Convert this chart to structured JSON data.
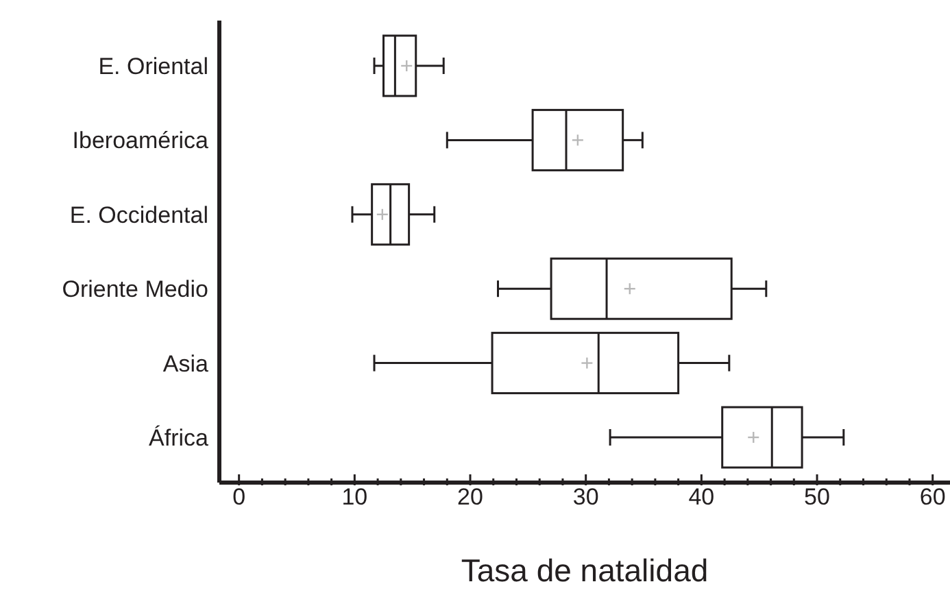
{
  "chart_data": {
    "type": "box",
    "orientation": "horizontal",
    "xlabel": "Tasa de natalidad",
    "color": "#231f20",
    "categories": [
      "E. Oriental",
      "Iberoamérica",
      "E. Occidental",
      "Oriente Medio",
      "Asia",
      "África"
    ],
    "boxes": [
      {
        "low": 11.7,
        "q1": 12.5,
        "median": 13.5,
        "q3": 15.3,
        "high": 17.7,
        "mean": 14.5
      },
      {
        "low": 18.0,
        "q1": 25.4,
        "median": 28.3,
        "q3": 33.2,
        "high": 34.9,
        "mean": 29.3
      },
      {
        "low": 9.8,
        "q1": 11.5,
        "median": 13.1,
        "q3": 14.7,
        "high": 16.9,
        "mean": 12.4
      },
      {
        "low": 22.4,
        "q1": 27.0,
        "median": 31.8,
        "q3": 42.6,
        "high": 45.6,
        "mean": 33.8
      },
      {
        "low": 11.7,
        "q1": 21.9,
        "median": 31.1,
        "q3": 38.0,
        "high": 42.4,
        "mean": 30.1
      },
      {
        "low": 32.1,
        "q1": 41.8,
        "median": 46.1,
        "q3": 48.7,
        "high": 52.3,
        "mean": 44.5
      }
    ],
    "xlim": [
      -1.7,
      61.5
    ],
    "xticks": [
      0,
      {
        "value": 2,
        "label": null
      },
      {
        "value": 4,
        "label": null
      },
      {
        "value": 6,
        "label": null
      },
      {
        "value": 8,
        "label": null
      },
      10,
      {
        "value": 12,
        "label": null
      },
      {
        "value": 14,
        "label": null
      },
      {
        "value": 16,
        "label": null
      },
      {
        "value": 18,
        "label": null
      },
      20,
      {
        "value": 22,
        "label": null
      },
      {
        "value": 24,
        "label": null
      },
      {
        "value": 26,
        "label": null
      },
      {
        "value": 28,
        "label": null
      },
      30,
      {
        "value": 32,
        "label": null
      },
      {
        "value": 34,
        "label": null
      },
      {
        "value": 36,
        "label": null
      },
      {
        "value": 38,
        "label": null
      },
      40,
      {
        "value": 42,
        "label": null
      },
      {
        "value": 44,
        "label": null
      },
      {
        "value": 46,
        "label": null
      },
      {
        "value": 48,
        "label": null
      },
      50,
      {
        "value": 52,
        "label": null
      },
      {
        "value": 54,
        "label": null
      },
      {
        "value": 56,
        "label": null
      },
      {
        "value": 58,
        "label": null
      },
      60
    ],
    "grid": false,
    "legend": false
  }
}
